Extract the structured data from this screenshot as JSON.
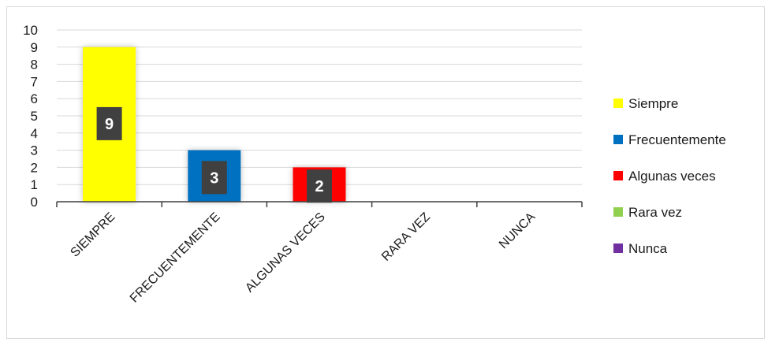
{
  "chart_data": {
    "type": "bar",
    "title": "",
    "xlabel": "",
    "ylabel": "",
    "categories": [
      "SIEMPRE",
      "FRECUENTEMENTE",
      "ALGUNAS VECES",
      "RARA VEZ",
      "NUNCA"
    ],
    "values": [
      9,
      3,
      2,
      0,
      0
    ],
    "data_labels": [
      "9",
      "3",
      "2",
      "",
      ""
    ],
    "ylim": [
      0,
      10
    ],
    "yticks": [
      "0",
      "1",
      "2",
      "3",
      "4",
      "5",
      "6",
      "7",
      "8",
      "9",
      "10"
    ],
    "grid": true,
    "legend_position": "right",
    "legend": [
      "Siempre",
      "Frecuentemente",
      "Algunas veces",
      "Rara vez",
      "Nunca"
    ],
    "colors": [
      "#ffff00",
      "#0070c0",
      "#ff0000",
      "#92d050",
      "#7030a0"
    ]
  }
}
